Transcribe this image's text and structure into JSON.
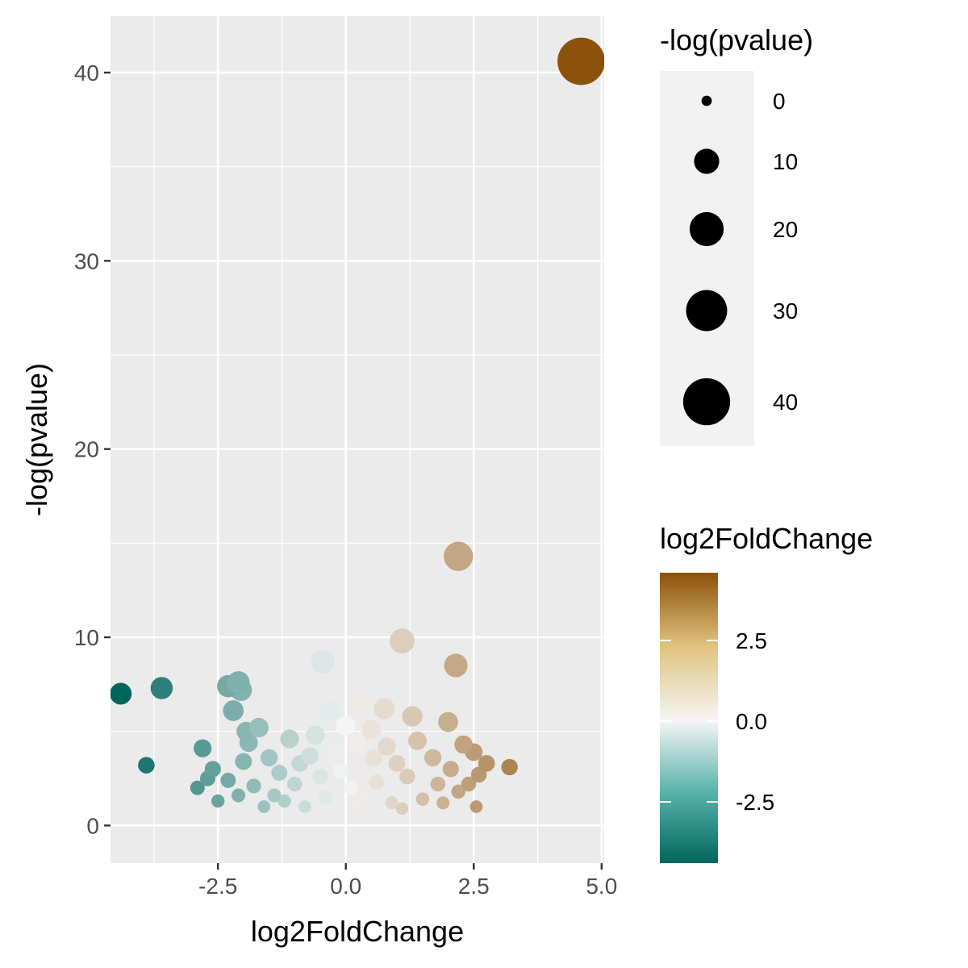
{
  "chart_data": {
    "type": "scatter",
    "title": "",
    "xlabel": "log2FoldChange",
    "ylabel": "-log(pvalue)",
    "xlim": [
      -4.6,
      5.05
    ],
    "ylim": [
      -2,
      43
    ],
    "x_ticks": [
      "-2.5",
      "0.0",
      "2.5",
      "5.0"
    ],
    "x_tick_values": [
      -2.5,
      0,
      2.5,
      5
    ],
    "y_ticks": [
      "0",
      "10",
      "20",
      "30",
      "40"
    ],
    "y_tick_values": [
      0,
      10,
      20,
      30,
      40
    ],
    "grid": true,
    "legend_position": "right",
    "size_legend": {
      "title": "-log(pvalue)",
      "breaks": [
        0,
        10,
        20,
        30,
        40
      ],
      "labels": [
        "0",
        "10",
        "20",
        "30",
        "40"
      ]
    },
    "color_legend": {
      "title": "log2FoldChange",
      "breaks": [
        2.5,
        0,
        -2.5
      ],
      "labels": [
        "2.5",
        "0.0",
        "-2.5"
      ],
      "range": [
        -4.4,
        4.6
      ],
      "low_color": "#01665e",
      "mid_color": "#f5f5f5",
      "high_color": "#8c510a"
    },
    "points": [
      {
        "x": 4.6,
        "y": 40.6
      },
      {
        "x": 2.2,
        "y": 14.3
      },
      {
        "x": 1.1,
        "y": 9.8
      },
      {
        "x": 2.15,
        "y": 8.5
      },
      {
        "x": -0.45,
        "y": 8.7
      },
      {
        "x": -4.4,
        "y": 7.0
      },
      {
        "x": -3.6,
        "y": 7.3
      },
      {
        "x": -3.9,
        "y": 3.2
      },
      {
        "x": 3.2,
        "y": 3.1
      },
      {
        "x": -2.1,
        "y": 7.6
      },
      {
        "x": -2.3,
        "y": 7.4
      },
      {
        "x": -2.05,
        "y": 7.2
      },
      {
        "x": -2.2,
        "y": 6.1
      },
      {
        "x": -1.7,
        "y": 5.2
      },
      {
        "x": -1.9,
        "y": 4.4
      },
      {
        "x": -2.8,
        "y": 4.1
      },
      {
        "x": -2.9,
        "y": 2.0
      },
      {
        "x": -2.6,
        "y": 3.0
      },
      {
        "x": -2.5,
        "y": 1.3
      },
      {
        "x": -2.3,
        "y": 2.4
      },
      {
        "x": -2.0,
        "y": 3.4
      },
      {
        "x": -2.1,
        "y": 1.6
      },
      {
        "x": -1.8,
        "y": 2.1
      },
      {
        "x": -1.6,
        "y": 1.0
      },
      {
        "x": -1.5,
        "y": 3.6
      },
      {
        "x": -1.3,
        "y": 2.8
      },
      {
        "x": -1.4,
        "y": 1.6
      },
      {
        "x": -1.1,
        "y": 4.6
      },
      {
        "x": -1.0,
        "y": 2.2
      },
      {
        "x": -0.9,
        "y": 3.3
      },
      {
        "x": -0.8,
        "y": 1.0
      },
      {
        "x": -0.6,
        "y": 4.8
      },
      {
        "x": -0.5,
        "y": 2.6
      },
      {
        "x": -0.4,
        "y": 1.5
      },
      {
        "x": -0.3,
        "y": 6.1
      },
      {
        "x": -0.2,
        "y": 4.0
      },
      {
        "x": -0.1,
        "y": 2.9
      },
      {
        "x": -0.25,
        "y": 0.4
      },
      {
        "x": 0.3,
        "y": 6.5
      },
      {
        "x": 0.2,
        "y": 4.4
      },
      {
        "x": 0.35,
        "y": 3.1
      },
      {
        "x": 0.25,
        "y": 1.4
      },
      {
        "x": 0.5,
        "y": 5.1
      },
      {
        "x": 0.6,
        "y": 2.3
      },
      {
        "x": 0.75,
        "y": 6.2
      },
      {
        "x": 0.8,
        "y": 4.2
      },
      {
        "x": 0.9,
        "y": 1.2
      },
      {
        "x": 1.0,
        "y": 3.3
      },
      {
        "x": 1.3,
        "y": 5.8
      },
      {
        "x": 1.2,
        "y": 2.6
      },
      {
        "x": 1.4,
        "y": 4.5
      },
      {
        "x": 1.5,
        "y": 1.4
      },
      {
        "x": 1.7,
        "y": 3.6
      },
      {
        "x": 1.8,
        "y": 2.2
      },
      {
        "x": 2.0,
        "y": 5.5
      },
      {
        "x": 2.05,
        "y": 3.0
      },
      {
        "x": 2.3,
        "y": 4.3
      },
      {
        "x": 2.2,
        "y": 1.8
      },
      {
        "x": 2.5,
        "y": 3.9
      },
      {
        "x": 2.6,
        "y": 2.7
      },
      {
        "x": 2.75,
        "y": 3.3
      },
      {
        "x": 2.55,
        "y": 1.0
      },
      {
        "x": 2.4,
        "y": 2.2
      },
      {
        "x": 1.9,
        "y": 1.2
      },
      {
        "x": -2.7,
        "y": 2.5
      },
      {
        "x": -1.95,
        "y": 5.0
      },
      {
        "x": -1.2,
        "y": 1.3
      },
      {
        "x": -0.7,
        "y": 3.7
      },
      {
        "x": 0.0,
        "y": 5.3
      },
      {
        "x": 0.1,
        "y": 2.0
      },
      {
        "x": 0.55,
        "y": 3.6
      },
      {
        "x": 1.1,
        "y": 0.9
      }
    ]
  }
}
